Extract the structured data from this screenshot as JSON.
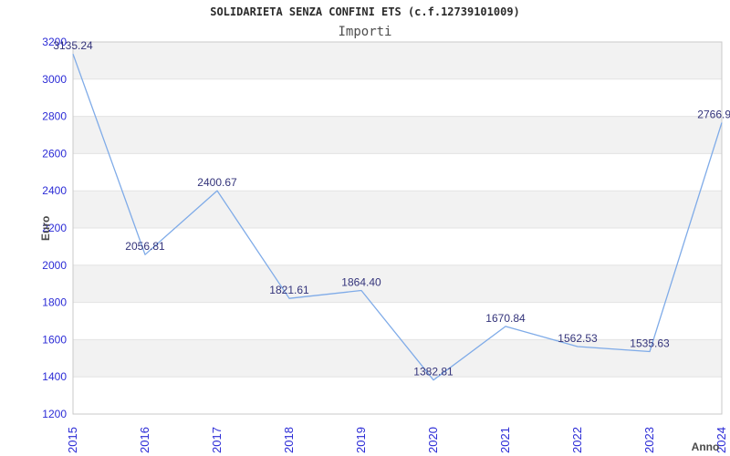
{
  "chart_data": {
    "type": "line",
    "title": "SOLIDARIETA SENZA CONFINI ETS (c.f.12739101009)",
    "subtitle": "Importi",
    "xlabel": "Anno",
    "ylabel": "Euro",
    "categories": [
      "2015",
      "2016",
      "2017",
      "2018",
      "2019",
      "2020",
      "2021",
      "2022",
      "2023",
      "2024"
    ],
    "series": [
      {
        "name": "Importi",
        "values": [
          3135.24,
          2056.81,
          2400.67,
          1821.61,
          1864.4,
          1382.81,
          1670.84,
          1562.53,
          1535.63,
          2766.9
        ],
        "point_labels": [
          "3135.24",
          "2056.81",
          "2400.67",
          "1821.61",
          "1864.40",
          "1382.81",
          "1670.84",
          "1562.53",
          "1535.63",
          "2766.9"
        ]
      }
    ],
    "ylim": [
      1200,
      3200
    ],
    "ytick_step": 200,
    "yticks": [
      "1200",
      "1400",
      "1600",
      "1800",
      "2000",
      "2200",
      "2400",
      "2600",
      "2800",
      "3000",
      "3200"
    ],
    "grid": true,
    "legend": "none",
    "banded_background": true,
    "colors": {
      "line": "#7fabe8",
      "tick_labels": "#2b2bd6",
      "point_labels": "#33337a",
      "band": "#f2f2f2",
      "gridline": "#e3e3e3",
      "plot_border": "#c9c9c9",
      "title": "#2b2b2b",
      "axis_titles": "#4a4a4a",
      "background": "#ffffff"
    }
  }
}
